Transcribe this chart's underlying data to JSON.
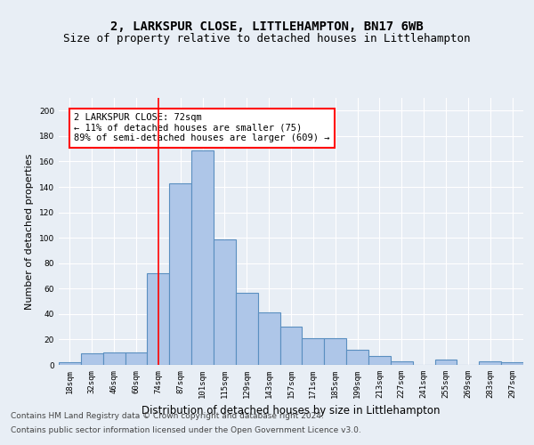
{
  "title": "2, LARKSPUR CLOSE, LITTLEHAMPTON, BN17 6WB",
  "subtitle": "Size of property relative to detached houses in Littlehampton",
  "xlabel": "Distribution of detached houses by size in Littlehampton",
  "ylabel": "Number of detached properties",
  "footer_line1": "Contains HM Land Registry data © Crown copyright and database right 2024.",
  "footer_line2": "Contains public sector information licensed under the Open Government Licence v3.0.",
  "categories": [
    "18sqm",
    "32sqm",
    "46sqm",
    "60sqm",
    "74sqm",
    "87sqm",
    "101sqm",
    "115sqm",
    "129sqm",
    "143sqm",
    "157sqm",
    "171sqm",
    "185sqm",
    "199sqm",
    "213sqm",
    "227sqm",
    "241sqm",
    "255sqm",
    "269sqm",
    "283sqm",
    "297sqm"
  ],
  "values": [
    2,
    9,
    10,
    10,
    72,
    143,
    169,
    99,
    57,
    41,
    30,
    21,
    21,
    12,
    7,
    3,
    0,
    4,
    0,
    3,
    2
  ],
  "bar_color": "#aec6e8",
  "bar_edge_color": "#5a8fc0",
  "bar_edge_width": 0.8,
  "vline_x_index": 4,
  "vline_color": "red",
  "annotation_title": "2 LARKSPUR CLOSE: 72sqm",
  "annotation_line1": "← 11% of detached houses are smaller (75)",
  "annotation_line2": "89% of semi-detached houses are larger (609) →",
  "annotation_box_color": "red",
  "ylim": [
    0,
    210
  ],
  "yticks": [
    0,
    20,
    40,
    60,
    80,
    100,
    120,
    140,
    160,
    180,
    200
  ],
  "background_color": "#e8eef5",
  "plot_bg_color": "#e8eef5",
  "grid_color": "white",
  "title_fontsize": 10,
  "subtitle_fontsize": 9,
  "xlabel_fontsize": 8.5,
  "ylabel_fontsize": 8,
  "tick_fontsize": 6.5,
  "annotation_fontsize": 7.5,
  "footer_fontsize": 6.5
}
